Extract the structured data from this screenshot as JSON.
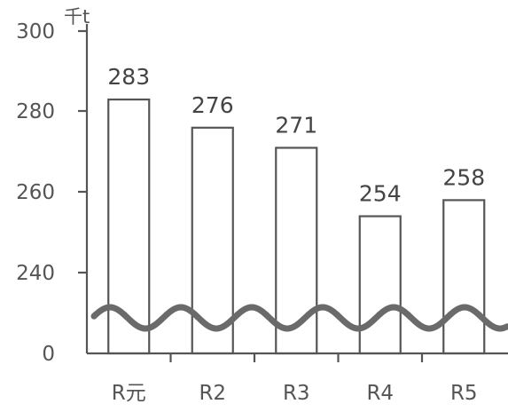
{
  "chart_data": {
    "type": "bar",
    "unit_label": "千t",
    "categories": [
      "R元",
      "R2",
      "R3",
      "R4",
      "R5"
    ],
    "values": [
      283,
      276,
      271,
      254,
      258
    ],
    "y_ticks": [
      "0",
      "240",
      "260",
      "280",
      "300"
    ],
    "ylim": [
      230,
      300
    ],
    "axis_break": true,
    "grid": false,
    "bar_fill": "#ffffff",
    "bar_stroke": "#555555"
  }
}
